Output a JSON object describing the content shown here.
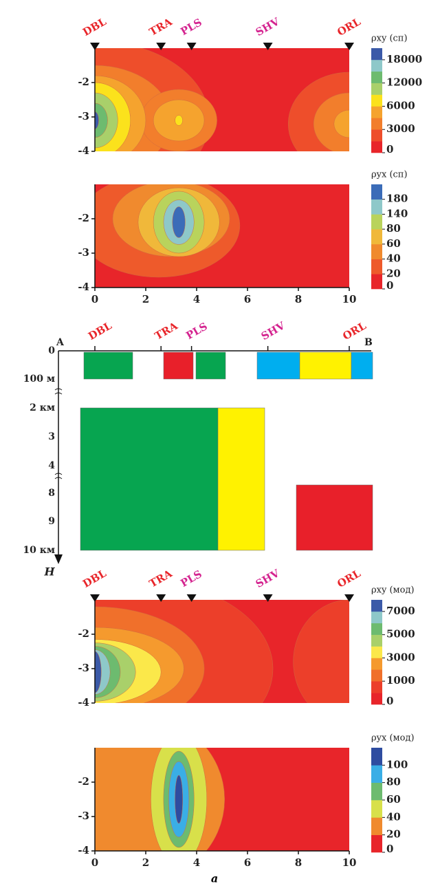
{
  "stations": [
    {
      "name": "DBL",
      "x": 0,
      "color": "#e8252a"
    },
    {
      "name": "TRA",
      "x": 2.6,
      "color": "#e8252a"
    },
    {
      "name": "PLS",
      "x": 3.8,
      "color": "#d4238f"
    },
    {
      "name": "SHV",
      "x": 6.8,
      "color": "#d4238f"
    },
    {
      "name": "ORL",
      "x": 10,
      "color": "#e8252a"
    }
  ],
  "chart_data": [
    {
      "type": "contour",
      "colorbar_title": "ρxy (сп)",
      "xlim": [
        0,
        10
      ],
      "ylim": [
        -4,
        -1
      ],
      "yticks": [
        -2,
        -3,
        -4
      ],
      "show_stations": true,
      "colorbar": {
        "bounds": [
          0,
          null,
          3000,
          null,
          6000,
          null,
          12000,
          null,
          18000,
          null
        ],
        "colors": [
          "#e8252a",
          "#ee4e2b",
          "#f27e2c",
          "#f5a32e",
          "#fbe21c",
          "#a9d06a",
          "#6dbb6f",
          "#8ec8c9",
          "#3b5aa8"
        ]
      }
    },
    {
      "type": "contour",
      "colorbar_title": "ρyx (сп)",
      "xlim": [
        0,
        10
      ],
      "ylim": [
        -4,
        -1
      ],
      "yticks": [
        -2,
        -3,
        -4
      ],
      "xticks": [
        0,
        2,
        4,
        6,
        8,
        10
      ],
      "show_stations": false,
      "colorbar": {
        "bounds": [
          0,
          20,
          40,
          60,
          80,
          140,
          180,
          null
        ],
        "colors": [
          "#e8252a",
          "#ee5a2b",
          "#f08a2e",
          "#f0b83a",
          "#b9d35c",
          "#8ec8c9",
          "#3b6cb8"
        ]
      }
    },
    {
      "type": "contour",
      "colorbar_title": "ρxy (мод)",
      "xlim": [
        0,
        10
      ],
      "ylim": [
        -4,
        -1
      ],
      "yticks": [
        -2,
        -3,
        -4
      ],
      "show_stations": true,
      "colorbar": {
        "bounds": [
          0,
          null,
          1000,
          null,
          3000,
          null,
          5000,
          null,
          7000,
          null
        ],
        "colors": [
          "#e8252a",
          "#ec3f2a",
          "#f0702b",
          "#f59a2e",
          "#fbe84a",
          "#a9d06a",
          "#6dbb6f",
          "#8ec8c9",
          "#3b5aa8"
        ]
      }
    },
    {
      "type": "contour",
      "colorbar_title": "ρyx (мод)",
      "xlim": [
        0,
        10
      ],
      "ylim": [
        -4,
        -1
      ],
      "yticks": [
        -2,
        -3,
        -4
      ],
      "xticks": [
        0,
        2,
        4,
        6,
        8,
        10
      ],
      "show_stations": false,
      "colorbar": {
        "bounds": [
          0,
          20,
          40,
          60,
          80,
          100,
          null
        ],
        "colors": [
          "#e8252a",
          "#f08a2e",
          "#d8e04a",
          "#6dbb6f",
          "#3aaee6",
          "#2e4ca0"
        ]
      }
    }
  ],
  "section": {
    "start_label": "A",
    "end_label": "B",
    "depth_labels": [
      "0",
      "100 м",
      "2 км",
      "3",
      "4",
      "8",
      "9",
      "10 км"
    ],
    "axis_label": "H"
  },
  "caption": "а"
}
